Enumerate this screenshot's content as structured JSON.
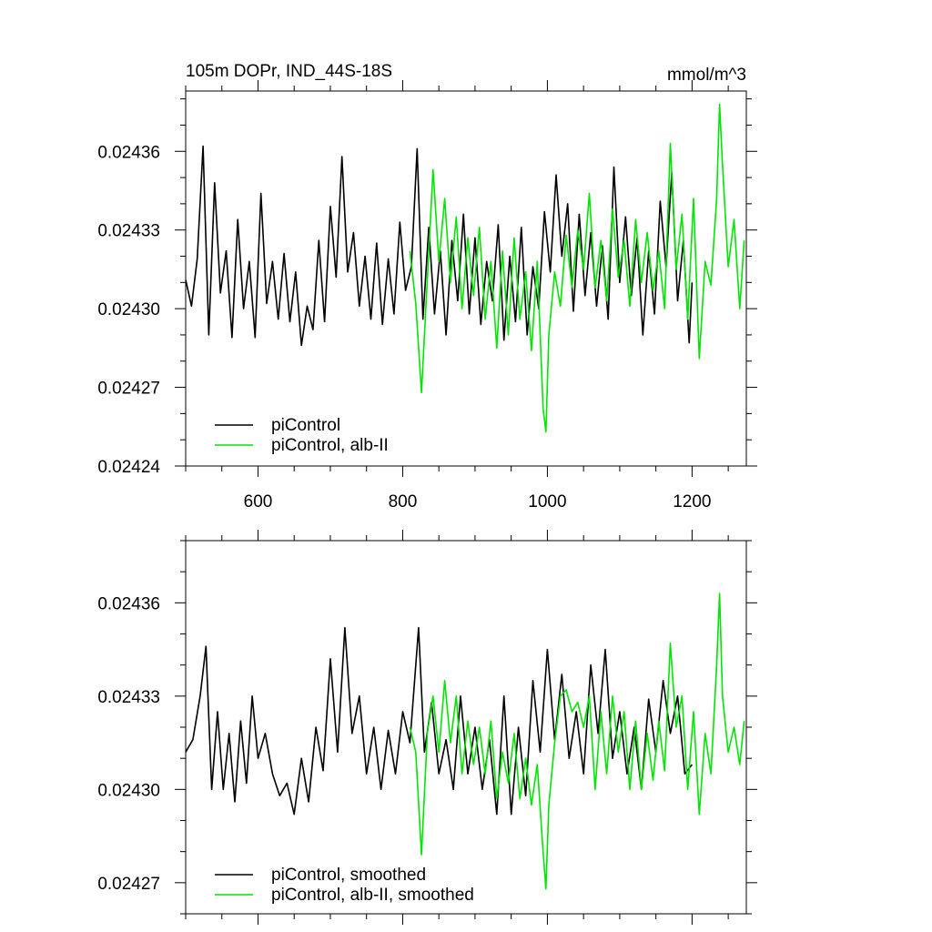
{
  "chart_data": [
    {
      "type": "line",
      "title": "105m DOPr, IND_44S-18S",
      "units": "mmol/m^3",
      "xlim": [
        500,
        1275
      ],
      "ylim": [
        0.02424,
        0.024383
      ],
      "x_ticks": [
        600,
        800,
        1000,
        1200
      ],
      "x_tick_labels": [
        "600",
        "800",
        "1000",
        "1200"
      ],
      "y_ticks": [
        0.02424,
        0.02427,
        0.0243,
        0.02433,
        0.02436
      ],
      "y_tick_labels": [
        "0.02424",
        "0.02427",
        "0.02430",
        "0.02433",
        "0.02436"
      ],
      "grid": false,
      "legend_position": "bottom-left",
      "series": [
        {
          "name": "piControl",
          "color": "#000000",
          "x": [
            500,
            508,
            516,
            524,
            532,
            540,
            548,
            556,
            564,
            572,
            580,
            588,
            596,
            604,
            612,
            620,
            628,
            636,
            644,
            652,
            660,
            668,
            676,
            684,
            692,
            700,
            708,
            716,
            724,
            732,
            740,
            748,
            756,
            764,
            772,
            780,
            788,
            796,
            804,
            812,
            820,
            828,
            836,
            844,
            852,
            860,
            868,
            876,
            884,
            892,
            900,
            908,
            916,
            924,
            932,
            940,
            948,
            956,
            964,
            972,
            980,
            988,
            996,
            1004,
            1012,
            1020,
            1028,
            1036,
            1044,
            1052,
            1060,
            1068,
            1076,
            1084,
            1092,
            1100,
            1108,
            1116,
            1124,
            1132,
            1140,
            1148,
            1156,
            1164,
            1172,
            1180,
            1188,
            1196,
            1200
          ],
          "values": [
            0.024311,
            0.024301,
            0.024319,
            0.024362,
            0.02429,
            0.024348,
            0.024306,
            0.024322,
            0.024289,
            0.024334,
            0.0243,
            0.024318,
            0.024289,
            0.024344,
            0.024302,
            0.024318,
            0.024296,
            0.024321,
            0.024295,
            0.024314,
            0.024286,
            0.024301,
            0.024292,
            0.024326,
            0.024295,
            0.024339,
            0.024312,
            0.024358,
            0.024314,
            0.024329,
            0.024301,
            0.02432,
            0.024296,
            0.024325,
            0.024294,
            0.024319,
            0.024298,
            0.024333,
            0.024307,
            0.024316,
            0.024361,
            0.024296,
            0.024331,
            0.024298,
            0.024322,
            0.02429,
            0.024326,
            0.024303,
            0.024336,
            0.024298,
            0.024327,
            0.024294,
            0.024318,
            0.024303,
            0.024332,
            0.024288,
            0.02432,
            0.024295,
            0.024331,
            0.02429,
            0.024316,
            0.0243,
            0.024337,
            0.024314,
            0.024351,
            0.02432,
            0.02434,
            0.024299,
            0.024336,
            0.024305,
            0.024329,
            0.024301,
            0.024324,
            0.024296,
            0.024354,
            0.02431,
            0.024335,
            0.024305,
            0.024327,
            0.02429,
            0.024322,
            0.024298,
            0.024341,
            0.024316,
            0.024352,
            0.024303,
            0.024326,
            0.024287,
            0.02431
          ]
        },
        {
          "name": "piControl, alb-II",
          "color": "#00e600",
          "x": [
            810,
            818,
            826,
            834,
            842,
            850,
            858,
            866,
            874,
            882,
            890,
            898,
            906,
            914,
            922,
            930,
            938,
            946,
            954,
            962,
            970,
            978,
            986,
            994,
            998,
            1002,
            1010,
            1018,
            1026,
            1034,
            1042,
            1050,
            1058,
            1066,
            1074,
            1082,
            1090,
            1098,
            1106,
            1114,
            1122,
            1130,
            1138,
            1146,
            1154,
            1162,
            1170,
            1178,
            1186,
            1194,
            1202,
            1210,
            1218,
            1226,
            1234,
            1238,
            1242,
            1250,
            1258,
            1266,
            1272
          ],
          "values": [
            0.024322,
            0.024302,
            0.024268,
            0.024311,
            0.024353,
            0.024318,
            0.024342,
            0.02431,
            0.024335,
            0.0243,
            0.024327,
            0.024305,
            0.024331,
            0.024296,
            0.024318,
            0.024285,
            0.024322,
            0.02429,
            0.024327,
            0.024296,
            0.024314,
            0.024284,
            0.024318,
            0.024262,
            0.024253,
            0.02429,
            0.024314,
            0.024301,
            0.024328,
            0.024308,
            0.02433,
            0.024315,
            0.024344,
            0.024308,
            0.024326,
            0.024303,
            0.024338,
            0.024312,
            0.024326,
            0.024301,
            0.024334,
            0.02431,
            0.024329,
            0.024307,
            0.024322,
            0.0243,
            0.024363,
            0.024315,
            0.024336,
            0.024296,
            0.024342,
            0.024281,
            0.024318,
            0.024309,
            0.024342,
            0.024378,
            0.024355,
            0.024316,
            0.024334,
            0.0243,
            0.024326
          ]
        }
      ]
    },
    {
      "type": "line",
      "title": "",
      "xlim": [
        500,
        1275
      ],
      "ylim": [
        0.02426,
        0.02438
      ],
      "x_ticks": [
        600,
        800,
        1000,
        1200
      ],
      "x_tick_labels": [
        "",
        "",
        "",
        ""
      ],
      "y_ticks": [
        0.02427,
        0.0243,
        0.02433,
        0.02436
      ],
      "y_tick_labels": [
        "0.02427",
        "0.02430",
        "0.02433",
        "0.02436"
      ],
      "grid": false,
      "legend_position": "bottom-left",
      "series": [
        {
          "name": "piControl, smoothed",
          "color": "#000000",
          "x": [
            500,
            510,
            520,
            528,
            536,
            544,
            552,
            560,
            568,
            576,
            584,
            592,
            600,
            610,
            620,
            630,
            640,
            650,
            660,
            670,
            680,
            690,
            700,
            710,
            720,
            730,
            740,
            750,
            760,
            770,
            780,
            790,
            800,
            810,
            822,
            830,
            840,
            850,
            860,
            870,
            880,
            890,
            900,
            910,
            920,
            930,
            940,
            950,
            960,
            970,
            980,
            990,
            1000,
            1010,
            1020,
            1030,
            1040,
            1050,
            1060,
            1070,
            1080,
            1090,
            1100,
            1110,
            1120,
            1130,
            1140,
            1150,
            1160,
            1170,
            1180,
            1190,
            1200
          ],
          "values": [
            0.024312,
            0.024316,
            0.02433,
            0.024346,
            0.0243,
            0.024325,
            0.0243,
            0.024318,
            0.024296,
            0.024322,
            0.024302,
            0.02433,
            0.02431,
            0.024318,
            0.024305,
            0.024298,
            0.024302,
            0.024292,
            0.02431,
            0.024296,
            0.02432,
            0.024306,
            0.024342,
            0.024312,
            0.024352,
            0.024318,
            0.02433,
            0.024305,
            0.02432,
            0.0243,
            0.024319,
            0.024305,
            0.024325,
            0.024315,
            0.024352,
            0.024312,
            0.024328,
            0.024305,
            0.024316,
            0.0243,
            0.02433,
            0.024305,
            0.02432,
            0.0243,
            0.024316,
            0.024292,
            0.02433,
            0.024292,
            0.02432,
            0.024298,
            0.024335,
            0.024312,
            0.024345,
            0.024316,
            0.024337,
            0.02431,
            0.024325,
            0.024305,
            0.02434,
            0.024318,
            0.024345,
            0.02431,
            0.024325,
            0.024305,
            0.02432,
            0.0243,
            0.024329,
            0.024312,
            0.024335,
            0.024318,
            0.02433,
            0.024305,
            0.024308
          ]
        },
        {
          "name": "piControl, alb-II, smoothed",
          "color": "#00e600",
          "x": [
            810,
            818,
            826,
            834,
            842,
            850,
            858,
            866,
            874,
            882,
            890,
            898,
            906,
            914,
            922,
            930,
            938,
            946,
            954,
            962,
            970,
            978,
            986,
            994,
            998,
            1002,
            1010,
            1018,
            1026,
            1034,
            1042,
            1050,
            1058,
            1066,
            1074,
            1082,
            1090,
            1098,
            1106,
            1114,
            1122,
            1130,
            1138,
            1146,
            1154,
            1162,
            1170,
            1178,
            1186,
            1194,
            1202,
            1210,
            1218,
            1226,
            1234,
            1238,
            1242,
            1250,
            1258,
            1266,
            1272
          ],
          "values": [
            0.02432,
            0.024312,
            0.024279,
            0.024318,
            0.02433,
            0.024312,
            0.024335,
            0.024315,
            0.02433,
            0.024305,
            0.024322,
            0.024308,
            0.02432,
            0.024305,
            0.024322,
            0.024297,
            0.024312,
            0.024302,
            0.024318,
            0.024297,
            0.02431,
            0.024295,
            0.024308,
            0.02428,
            0.024268,
            0.024295,
            0.024315,
            0.02433,
            0.024332,
            0.024325,
            0.024328,
            0.02432,
            0.02433,
            0.0243,
            0.024325,
            0.024305,
            0.02433,
            0.024312,
            0.024325,
            0.0243,
            0.024322,
            0.0243,
            0.024318,
            0.024303,
            0.024322,
            0.024306,
            0.024347,
            0.02432,
            0.02433,
            0.0243,
            0.024325,
            0.024292,
            0.024318,
            0.024305,
            0.02434,
            0.024363,
            0.02433,
            0.024312,
            0.02432,
            0.024308,
            0.024322
          ]
        }
      ]
    }
  ]
}
